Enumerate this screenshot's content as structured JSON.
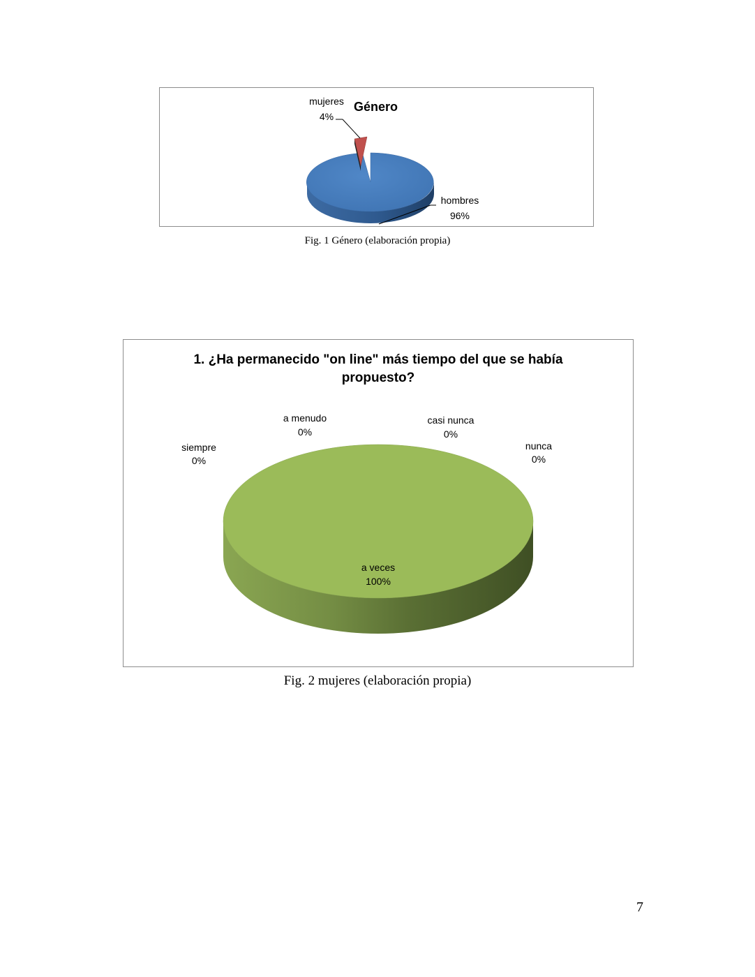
{
  "chart_data": [
    {
      "type": "pie",
      "style": "3d",
      "title": "Género",
      "slices": [
        {
          "label": "hombres",
          "value_label": "96%",
          "value": 96,
          "color": "#4a7ebb"
        },
        {
          "label": "mujeres",
          "value_label": "4%",
          "value": 4,
          "color": "#c0504d"
        }
      ]
    },
    {
      "type": "pie",
      "style": "3d",
      "title_line1": "1. ¿Ha permanecido \"on line\" más tiempo del que se había",
      "title_line2": "propuesto?",
      "slices": [
        {
          "label": "a veces",
          "value_label": "100%",
          "value": 100,
          "color": "#9bbb59"
        },
        {
          "label": "siempre",
          "value_label": "0%",
          "value": 0
        },
        {
          "label": "a menudo",
          "value_label": "0%",
          "value": 0
        },
        {
          "label": "casi nunca",
          "value_label": "0%",
          "value": 0
        },
        {
          "label": "nunca",
          "value_label": "0%",
          "value": 0
        }
      ]
    }
  ],
  "captions": {
    "fig1": "Fig. 1 Género (elaboración propia)",
    "fig2": "Fig. 2 mujeres (elaboración propia)"
  },
  "page_number": "7"
}
